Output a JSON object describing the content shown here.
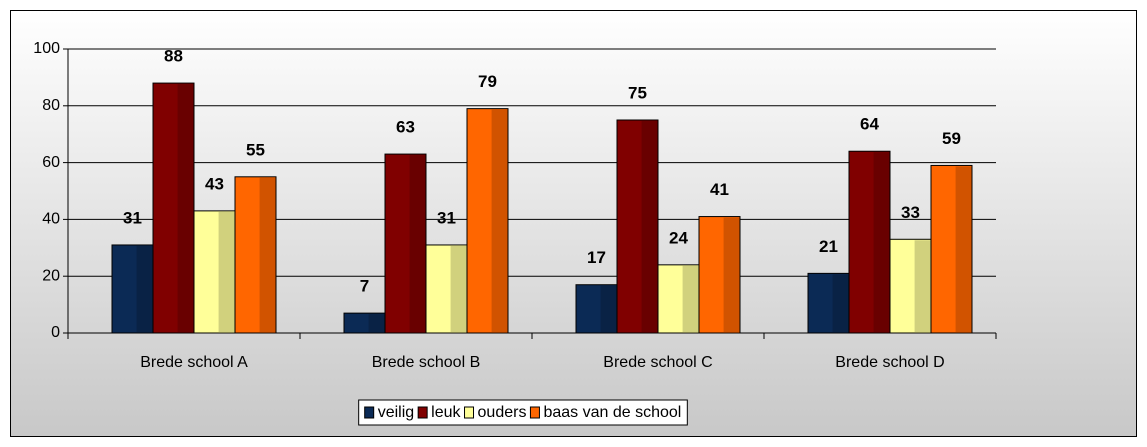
{
  "chart_data": {
    "type": "bar",
    "categories": [
      "Brede school A",
      "Brede school B",
      "Brede school C",
      "Brede school D"
    ],
    "series": [
      {
        "name": "veilig",
        "color": "#0b2a55",
        "values": [
          31,
          7,
          17,
          21
        ]
      },
      {
        "name": "leuk",
        "color": "#800000",
        "values": [
          88,
          63,
          75,
          64
        ]
      },
      {
        "name": "ouders",
        "color": "#ffff99",
        "values": [
          43,
          31,
          24,
          33
        ]
      },
      {
        "name": "baas van de school",
        "color": "#ff6600",
        "values": [
          55,
          79,
          41,
          59
        ]
      }
    ],
    "ylim": [
      0,
      100
    ],
    "yticks": [
      0,
      20,
      40,
      60,
      80,
      100
    ],
    "grid": true,
    "legend": "bottom"
  }
}
